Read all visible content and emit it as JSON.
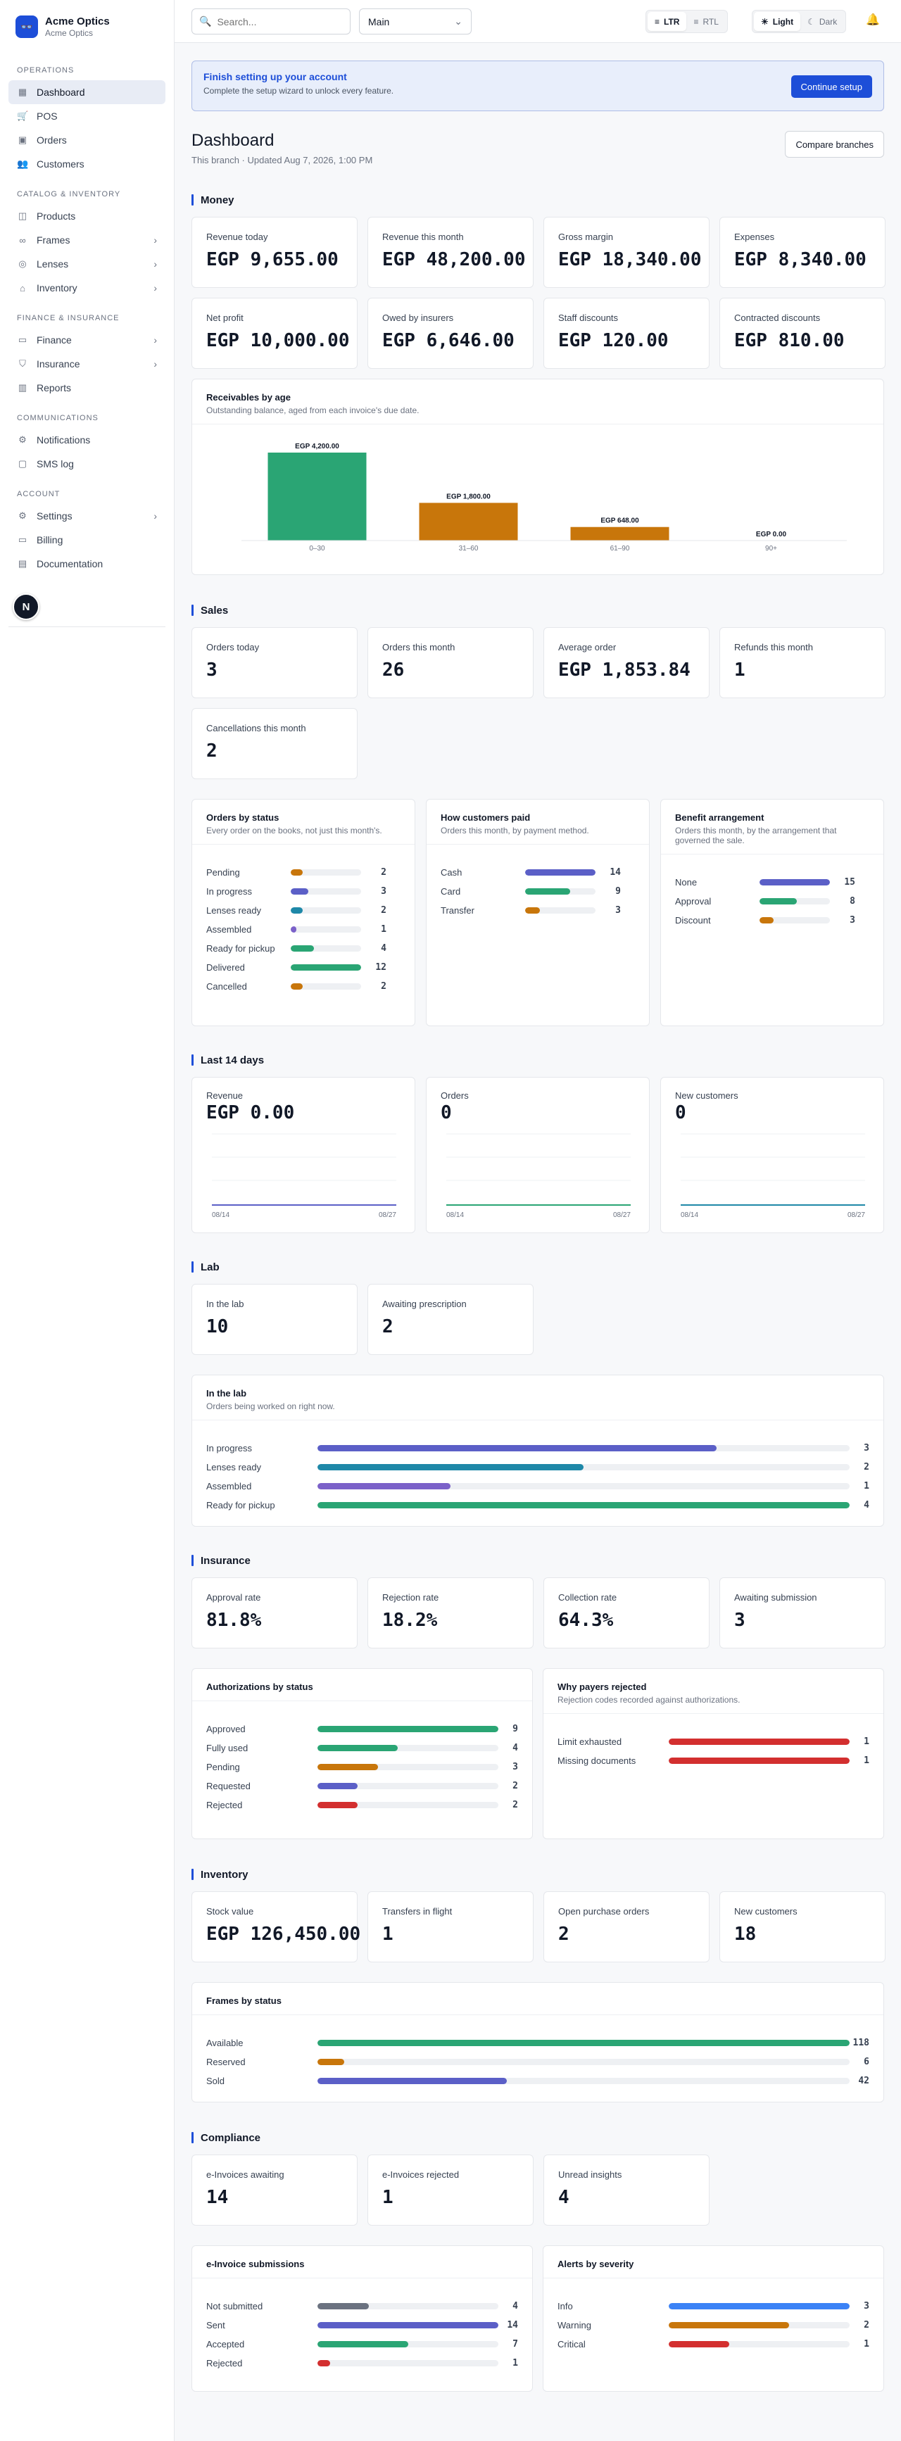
{
  "brand": {
    "name": "Acme Optics",
    "sub": "Acme Optics",
    "logo": "👓"
  },
  "sidebar": {
    "sections": [
      {
        "title": "OPERATIONS",
        "items": [
          {
            "label": "Dashboard",
            "icon": "grid-icon",
            "glyph": "▦",
            "active": true,
            "chev": false
          },
          {
            "label": "POS",
            "icon": "cart-icon",
            "glyph": "🛒",
            "chev": false
          },
          {
            "label": "Orders",
            "icon": "box-icon",
            "glyph": "▣",
            "chev": false
          },
          {
            "label": "Customers",
            "icon": "users-icon",
            "glyph": "👥",
            "chev": false
          }
        ]
      },
      {
        "title": "CATALOG & INVENTORY",
        "items": [
          {
            "label": "Products",
            "icon": "package-icon",
            "glyph": "◫",
            "chev": false
          },
          {
            "label": "Frames",
            "icon": "glasses-icon",
            "glyph": "∞",
            "chev": true
          },
          {
            "label": "Lenses",
            "icon": "lens-icon",
            "glyph": "◎",
            "chev": true
          },
          {
            "label": "Inventory",
            "icon": "warehouse-icon",
            "glyph": "⌂",
            "chev": true
          }
        ]
      },
      {
        "title": "FINANCE & INSURANCE",
        "items": [
          {
            "label": "Finance",
            "icon": "wallet-icon",
            "glyph": "▭",
            "chev": true
          },
          {
            "label": "Insurance",
            "icon": "shield-icon",
            "glyph": "⛉",
            "chev": true
          },
          {
            "label": "Reports",
            "icon": "chart-icon",
            "glyph": "▥",
            "chev": false
          }
        ]
      },
      {
        "title": "COMMUNICATIONS",
        "items": [
          {
            "label": "Notifications",
            "icon": "gear-icon",
            "glyph": "⚙",
            "chev": false
          },
          {
            "label": "SMS log",
            "icon": "message-icon",
            "glyph": "▢",
            "chev": false
          }
        ]
      },
      {
        "title": "ACCOUNT",
        "items": [
          {
            "label": "Settings",
            "icon": "settings-icon",
            "glyph": "⚙",
            "chev": true
          },
          {
            "label": "Billing",
            "icon": "card-icon",
            "glyph": "▭",
            "chev": false
          },
          {
            "label": "Documentation",
            "icon": "book-icon",
            "glyph": "▤",
            "chev": false
          }
        ]
      }
    ],
    "avatar": "N"
  },
  "topbar": {
    "search_placeholder": "Search...",
    "branch": "Main",
    "ltr": "LTR",
    "rtl": "RTL",
    "light": "Light",
    "dark": "Dark"
  },
  "setup": {
    "title": "Finish setting up your account",
    "sub": "Complete the setup wizard to unlock every feature.",
    "button": "Continue setup"
  },
  "page": {
    "title": "Dashboard",
    "sub": "This branch · Updated Aug 7, 2026, 1:00 PM",
    "compare": "Compare branches"
  },
  "money": {
    "title": "Money",
    "stats": [
      {
        "label": "Revenue today",
        "value": "EGP 9,655.00"
      },
      {
        "label": "Revenue this month",
        "value": "EGP 48,200.00"
      },
      {
        "label": "Gross margin",
        "value": "EGP 18,340.00"
      },
      {
        "label": "Expenses",
        "value": "EGP 8,340.00"
      },
      {
        "label": "Net profit",
        "value": "EGP 10,000.00"
      },
      {
        "label": "Owed by insurers",
        "value": "EGP 6,646.00"
      },
      {
        "label": "Staff discounts",
        "value": "EGP 120.00"
      },
      {
        "label": "Contracted discounts",
        "value": "EGP 810.00"
      }
    ],
    "receivables": {
      "title": "Receivables by age",
      "sub": "Outstanding balance, aged from each invoice's due date."
    }
  },
  "chart_data": {
    "type": "bar",
    "categories": [
      "0–30",
      "31–60",
      "61–90",
      "90+"
    ],
    "values": [
      4200,
      1800,
      648,
      0
    ],
    "data_labels": [
      "EGP 4,200.00",
      "EGP 1,800.00",
      "EGP 648.00",
      "EGP 0.00"
    ],
    "colors": [
      "#2aa574",
      "#c8760b",
      "#c8760b",
      "#d32f2f"
    ],
    "ylim": [
      0,
      4200
    ],
    "grid": false
  },
  "sales": {
    "title": "Sales",
    "stats": [
      {
        "label": "Orders today",
        "value": "3"
      },
      {
        "label": "Orders this month",
        "value": "26"
      },
      {
        "label": "Average order",
        "value": "EGP 1,853.84"
      },
      {
        "label": "Refunds this month",
        "value": "1"
      },
      {
        "label": "Cancellations this month",
        "value": "2"
      }
    ],
    "by_status": {
      "title": "Orders by status",
      "sub": "Every order on the books, not just this month's.",
      "max": 12,
      "rows": [
        {
          "label": "Pending",
          "value": 2,
          "color": "#c8760b"
        },
        {
          "label": "In progress",
          "value": 3,
          "color": "#5b5fc7"
        },
        {
          "label": "Lenses ready",
          "value": 2,
          "color": "#1e88a8"
        },
        {
          "label": "Assembled",
          "value": 1,
          "color": "#7b61c9"
        },
        {
          "label": "Ready for pickup",
          "value": 4,
          "color": "#2aa574"
        },
        {
          "label": "Delivered",
          "value": 12,
          "color": "#2aa574"
        },
        {
          "label": "Cancelled",
          "value": 2,
          "color": "#c8760b"
        }
      ]
    },
    "paid": {
      "title": "How customers paid",
      "sub": "Orders this month, by payment method.",
      "max": 14,
      "rows": [
        {
          "label": "Cash",
          "value": 14,
          "color": "#5b5fc7"
        },
        {
          "label": "Card",
          "value": 9,
          "color": "#2aa574"
        },
        {
          "label": "Transfer",
          "value": 3,
          "color": "#c8760b"
        }
      ]
    },
    "benefit": {
      "title": "Benefit arrangement",
      "sub": "Orders this month, by the arrangement that governed the sale.",
      "max": 15,
      "rows": [
        {
          "label": "None",
          "value": 15,
          "color": "#5b5fc7"
        },
        {
          "label": "Approval",
          "value": 8,
          "color": "#2aa574"
        },
        {
          "label": "Discount",
          "value": 3,
          "color": "#c8760b"
        }
      ]
    }
  },
  "last14": {
    "title": "Last 14 days",
    "cards": [
      {
        "label": "Revenue",
        "value": "EGP 0.00",
        "start": "08/14",
        "end": "08/27",
        "color": "#5b5fc7"
      },
      {
        "label": "Orders",
        "value": "0",
        "start": "08/14",
        "end": "08/27",
        "color": "#2aa574"
      },
      {
        "label": "New customers",
        "value": "0",
        "start": "08/14",
        "end": "08/27",
        "color": "#1e88a8"
      }
    ]
  },
  "lab": {
    "title": "Lab",
    "stats": [
      {
        "label": "In the lab",
        "value": "10"
      },
      {
        "label": "Awaiting prescription",
        "value": "2"
      }
    ],
    "card": {
      "title": "In the lab",
      "sub": "Orders being worked on right now.",
      "max": 4,
      "rows": [
        {
          "label": "In progress",
          "value": 3,
          "color": "#5b5fc7"
        },
        {
          "label": "Lenses ready",
          "value": 2,
          "color": "#1e88a8"
        },
        {
          "label": "Assembled",
          "value": 1,
          "color": "#7b61c9"
        },
        {
          "label": "Ready for pickup",
          "value": 4,
          "color": "#2aa574"
        }
      ]
    }
  },
  "insurance": {
    "title": "Insurance",
    "stats": [
      {
        "label": "Approval rate",
        "value": "81.8%"
      },
      {
        "label": "Rejection rate",
        "value": "18.2%"
      },
      {
        "label": "Collection rate",
        "value": "64.3%"
      },
      {
        "label": "Awaiting submission",
        "value": "3"
      }
    ],
    "auth": {
      "title": "Authorizations by status",
      "sub": "",
      "max": 9,
      "rows": [
        {
          "label": "Approved",
          "value": 9,
          "color": "#2aa574"
        },
        {
          "label": "Fully used",
          "value": 4,
          "color": "#2aa574"
        },
        {
          "label": "Pending",
          "value": 3,
          "color": "#c8760b"
        },
        {
          "label": "Requested",
          "value": 2,
          "color": "#5b5fc7"
        },
        {
          "label": "Rejected",
          "value": 2,
          "color": "#d32f2f"
        }
      ]
    },
    "why": {
      "title": "Why payers rejected",
      "sub": "Rejection codes recorded against authorizations.",
      "max": 1,
      "rows": [
        {
          "label": "Limit exhausted",
          "value": 1,
          "color": "#d32f2f"
        },
        {
          "label": "Missing documents",
          "value": 1,
          "color": "#d32f2f"
        }
      ]
    }
  },
  "inventory": {
    "title": "Inventory",
    "stats": [
      {
        "label": "Stock value",
        "value": "EGP 126,450.00"
      },
      {
        "label": "Transfers in flight",
        "value": "1"
      },
      {
        "label": "Open purchase orders",
        "value": "2"
      },
      {
        "label": "New customers",
        "value": "18"
      }
    ],
    "frames": {
      "title": "Frames by status",
      "sub": "",
      "max": 118,
      "rows": [
        {
          "label": "Available",
          "value": 118,
          "color": "#2aa574"
        },
        {
          "label": "Reserved",
          "value": 6,
          "color": "#c8760b"
        },
        {
          "label": "Sold",
          "value": 42,
          "color": "#5b5fc7"
        }
      ]
    }
  },
  "compliance": {
    "title": "Compliance",
    "stats": [
      {
        "label": "e-Invoices awaiting",
        "value": "14"
      },
      {
        "label": "e-Invoices rejected",
        "value": "1"
      },
      {
        "label": "Unread insights",
        "value": "4"
      }
    ],
    "einv": {
      "title": "e-Invoice submissions",
      "sub": "",
      "max": 14,
      "rows": [
        {
          "label": "Not submitted",
          "value": 4,
          "color": "#6b7280"
        },
        {
          "label": "Sent",
          "value": 14,
          "color": "#5b5fc7"
        },
        {
          "label": "Accepted",
          "value": 7,
          "color": "#2aa574"
        },
        {
          "label": "Rejected",
          "value": 1,
          "color": "#d32f2f"
        }
      ]
    },
    "alerts": {
      "title": "Alerts by severity",
      "sub": "",
      "max": 3,
      "rows": [
        {
          "label": "Info",
          "value": 3,
          "color": "#3b82f6"
        },
        {
          "label": "Warning",
          "value": 2,
          "color": "#c8760b"
        },
        {
          "label": "Critical",
          "value": 1,
          "color": "#d32f2f"
        }
      ]
    }
  }
}
